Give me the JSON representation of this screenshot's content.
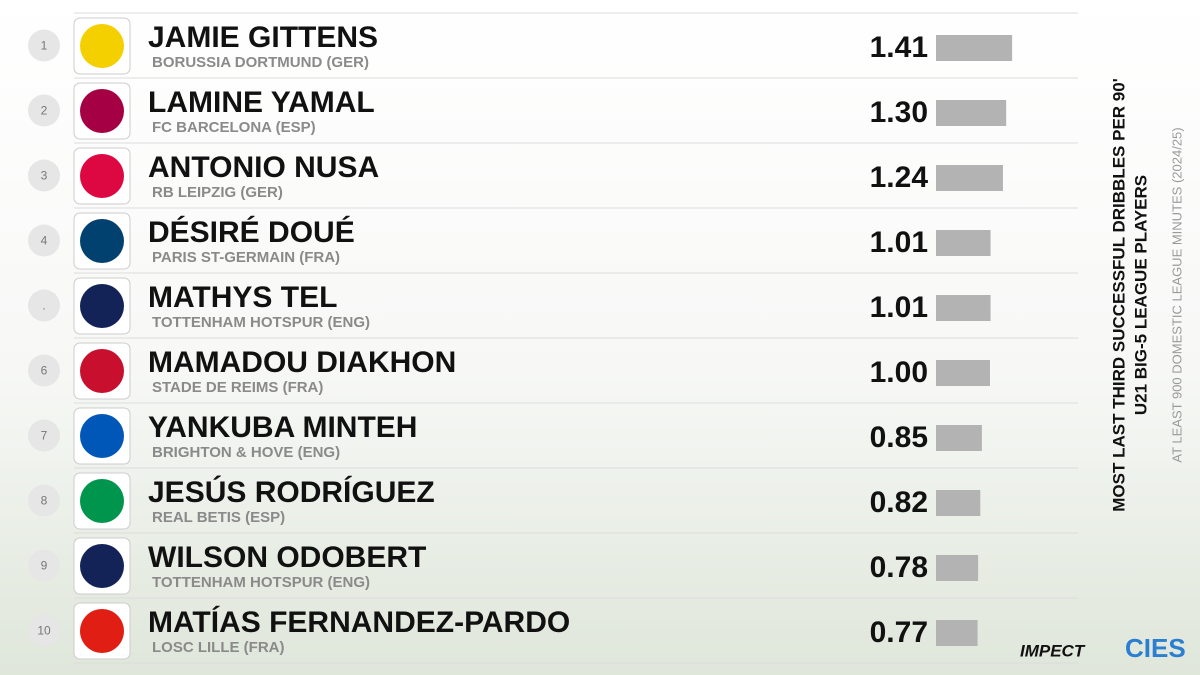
{
  "chart_data": {
    "type": "bar",
    "title": "MOST LAST THIRD SUCCESSFUL DRIBBLES PER 90'",
    "subtitle": "U21 BIG-5 LEAGUE PLAYERS",
    "note": "AT LEAST 900 DOMESTIC LEAGUE MINUTES (2024/25)",
    "ranks": [
      "1",
      "2",
      "3",
      "4",
      ".",
      "6",
      "7",
      "8",
      "9",
      "10"
    ],
    "categories": [
      "JAMIE GITTENS",
      "LAMINE YAMAL",
      "ANTONIO NUSA",
      "DÉSIRÉ DOUÉ",
      "MATHYS TEL",
      "MAMADOU DIAKHON",
      "YANKUBA MINTEH",
      "JESÚS RODRÍGUEZ",
      "WILSON ODOBERT",
      "MATÍAS FERNANDEZ-PARDO"
    ],
    "clubs": [
      "BORUSSIA DORTMUND (GER)",
      "FC BARCELONA (ESP)",
      "RB LEIPZIG (GER)",
      "PARIS ST-GERMAIN (FRA)",
      "TOTTENHAM HOTSPUR (ENG)",
      "STADE DE REIMS (FRA)",
      "BRIGHTON & HOVE (ENG)",
      "REAL BETIS (ESP)",
      "TOTTENHAM HOTSPUR (ENG)",
      "LOSC LILLE (FRA)"
    ],
    "values": [
      1.41,
      1.3,
      1.24,
      1.01,
      1.01,
      1.0,
      0.85,
      0.82,
      0.78,
      0.77
    ],
    "value_labels": [
      "1.41",
      "1.30",
      "1.24",
      "1.01",
      "1.01",
      "1.00",
      "0.85",
      "0.82",
      "0.78",
      "0.77"
    ],
    "color": "#b3b3b3",
    "logos": [
      "IMPECT",
      "CIES"
    ]
  }
}
